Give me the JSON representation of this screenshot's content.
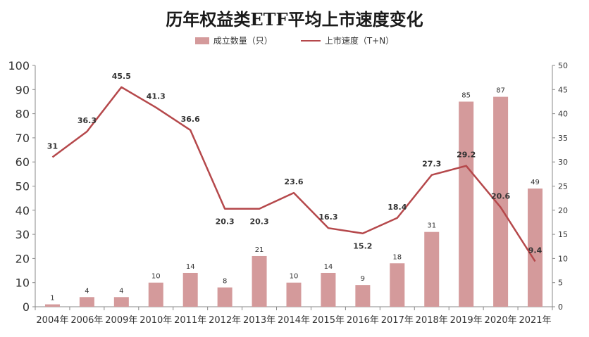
{
  "chart_data": {
    "type": "bar+line",
    "title": "历年权益类ETF平均上市速度变化",
    "categories": [
      "2004年",
      "2006年",
      "2009年",
      "2010年",
      "2011年",
      "2012年",
      "2013年",
      "2014年",
      "2015年",
      "2016年",
      "2017年",
      "2018年",
      "2019年",
      "2020年",
      "2021年"
    ],
    "series": [
      {
        "name": "成立数量（只）",
        "type": "bar",
        "axis": "left",
        "color": "#d49a9b",
        "values": [
          1,
          4,
          4,
          10,
          14,
          8,
          21,
          10,
          14,
          9,
          18,
          31,
          85,
          87,
          49
        ]
      },
      {
        "name": "上市速度（T+N）",
        "type": "line",
        "axis": "right",
        "color": "#b5484b",
        "values": [
          31,
          36.3,
          45.5,
          41.3,
          36.6,
          20.3,
          20.3,
          23.6,
          16.3,
          15.2,
          18.4,
          27.3,
          29.2,
          20.6,
          9.4
        ]
      }
    ],
    "y_left": {
      "min": 0,
      "max": 100,
      "ticks": [
        0,
        10,
        20,
        30,
        40,
        50,
        60,
        70,
        80,
        90,
        100
      ]
    },
    "y_right": {
      "min": 0,
      "max": 50,
      "ticks": [
        0,
        5,
        10,
        15,
        20,
        25,
        30,
        35,
        40,
        45,
        50
      ]
    },
    "legend_position": "top-center",
    "grid": false
  }
}
